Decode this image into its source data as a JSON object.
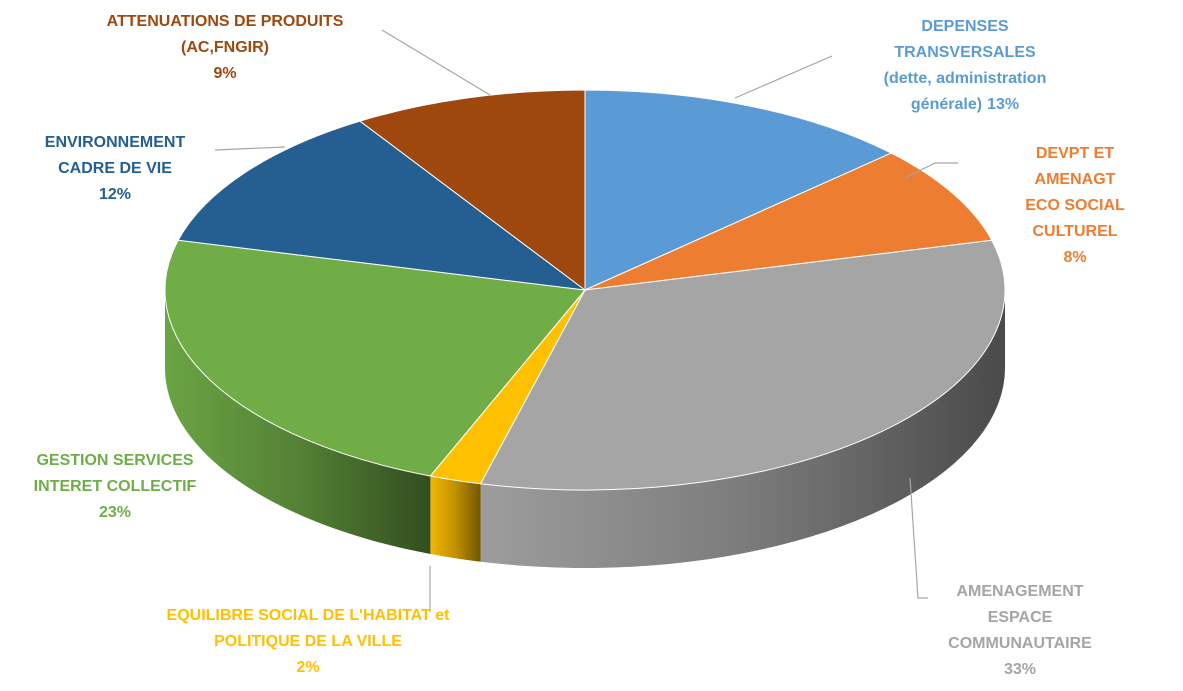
{
  "chart_data": {
    "type": "pie3d",
    "categories": [
      "DEPENSES TRANSVERSALES\n(dette, administration\ngénérale)",
      "DEVPT ET AMENAGT\nECO SOCIAL\nCULTUREL",
      "AMENAGEMENT\nESPACE\nCOMMUNAUTAIRE",
      "EQUILIBRE  SOCIAL DE L'HABITAT et\nPOLITIQUE  DE LA VILLE",
      "GESTION  SERVICES\nINTERET  COLLECTIF",
      "ENVIRONNEMENT\nCADRE  DE VIE",
      "ATTENUATIONS  DE PRODUITS\n(AC,FNGIR)"
    ],
    "values": [
      13,
      8,
      33,
      2,
      23,
      12,
      9
    ],
    "value_labels": [
      "13%",
      "8%",
      "33%",
      "2%",
      "23%",
      "12%",
      "9%"
    ],
    "colors": [
      "#5b9bd5",
      "#ed7d31",
      "#a5a5a5",
      "#ffc000",
      "#70ad47",
      "#255e91",
      "#9e480e"
    ]
  }
}
